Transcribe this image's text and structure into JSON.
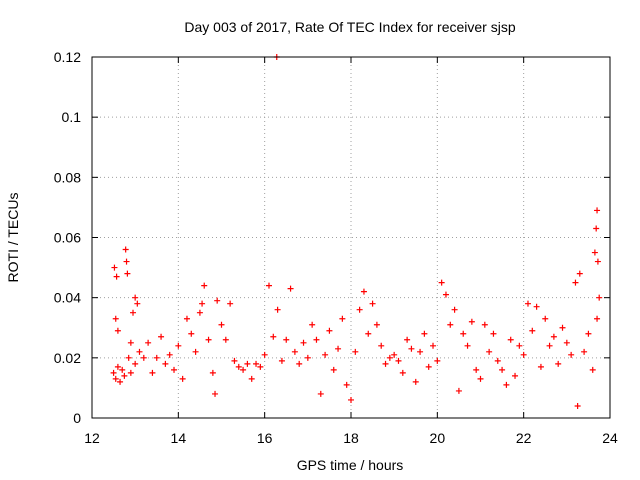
{
  "chart_data": {
    "type": "scatter",
    "title": "Day 003 of 2017, Rate Of TEC Index for receiver sjsp",
    "xlabel": "GPS time / hours",
    "ylabel": "ROTI / TECUs",
    "xlim": [
      12,
      24
    ],
    "ylim": [
      0,
      0.12
    ],
    "x_ticks": [
      12,
      14,
      16,
      18,
      20,
      22,
      24
    ],
    "y_ticks": [
      0,
      0.02,
      0.04,
      0.06,
      0.08,
      0.1,
      0.12
    ],
    "x_tick_labels": [
      "12",
      "14",
      "16",
      "18",
      "20",
      "22",
      "24"
    ],
    "y_tick_labels": [
      "0",
      "0.02",
      "0.04",
      "0.06",
      "0.08",
      "0.1",
      "0.12"
    ],
    "grid": true,
    "marker": "plus",
    "color": "#ff0000",
    "series": [
      {
        "points": [
          [
            12.5,
            0.015
          ],
          [
            12.55,
            0.013
          ],
          [
            12.6,
            0.017
          ],
          [
            12.65,
            0.012
          ],
          [
            12.7,
            0.016
          ],
          [
            12.75,
            0.014
          ],
          [
            12.55,
            0.033
          ],
          [
            12.6,
            0.029
          ],
          [
            12.52,
            0.05
          ],
          [
            12.57,
            0.047
          ],
          [
            12.78,
            0.056
          ],
          [
            12.8,
            0.052
          ],
          [
            12.82,
            0.048
          ],
          [
            12.85,
            0.02
          ],
          [
            12.9,
            0.025
          ],
          [
            12.95,
            0.035
          ],
          [
            13.0,
            0.04
          ],
          [
            13.05,
            0.038
          ],
          [
            12.9,
            0.015
          ],
          [
            13.0,
            0.018
          ],
          [
            13.1,
            0.022
          ],
          [
            13.2,
            0.02
          ],
          [
            13.3,
            0.025
          ],
          [
            13.4,
            0.015
          ],
          [
            13.5,
            0.02
          ],
          [
            13.6,
            0.027
          ],
          [
            13.7,
            0.018
          ],
          [
            13.8,
            0.021
          ],
          [
            13.9,
            0.016
          ],
          [
            14.0,
            0.024
          ],
          [
            14.1,
            0.013
          ],
          [
            14.2,
            0.033
          ],
          [
            14.3,
            0.028
          ],
          [
            14.4,
            0.022
          ],
          [
            14.5,
            0.035
          ],
          [
            14.6,
            0.044
          ],
          [
            14.55,
            0.038
          ],
          [
            14.7,
            0.026
          ],
          [
            14.8,
            0.015
          ],
          [
            14.85,
            0.008
          ],
          [
            14.9,
            0.039
          ],
          [
            15.0,
            0.031
          ],
          [
            15.1,
            0.026
          ],
          [
            15.2,
            0.038
          ],
          [
            15.3,
            0.019
          ],
          [
            15.4,
            0.017
          ],
          [
            15.5,
            0.016
          ],
          [
            15.6,
            0.018
          ],
          [
            15.7,
            0.013
          ],
          [
            15.8,
            0.018
          ],
          [
            15.9,
            0.017
          ],
          [
            16.0,
            0.021
          ],
          [
            16.1,
            0.044
          ],
          [
            16.2,
            0.027
          ],
          [
            16.3,
            0.036
          ],
          [
            16.28,
            0.12
          ],
          [
            16.4,
            0.019
          ],
          [
            16.5,
            0.026
          ],
          [
            16.6,
            0.043
          ],
          [
            16.7,
            0.022
          ],
          [
            16.8,
            0.018
          ],
          [
            16.9,
            0.025
          ],
          [
            17.0,
            0.02
          ],
          [
            17.1,
            0.031
          ],
          [
            17.2,
            0.026
          ],
          [
            17.3,
            0.008
          ],
          [
            17.4,
            0.021
          ],
          [
            17.5,
            0.029
          ],
          [
            17.6,
            0.016
          ],
          [
            17.7,
            0.023
          ],
          [
            17.8,
            0.033
          ],
          [
            17.9,
            0.011
          ],
          [
            18.0,
            0.006
          ],
          [
            18.1,
            0.022
          ],
          [
            18.2,
            0.036
          ],
          [
            18.3,
            0.042
          ],
          [
            18.4,
            0.028
          ],
          [
            18.5,
            0.038
          ],
          [
            18.6,
            0.031
          ],
          [
            18.7,
            0.024
          ],
          [
            18.8,
            0.018
          ],
          [
            18.9,
            0.02
          ],
          [
            19.0,
            0.021
          ],
          [
            19.1,
            0.019
          ],
          [
            19.2,
            0.015
          ],
          [
            19.3,
            0.026
          ],
          [
            19.4,
            0.023
          ],
          [
            19.5,
            0.012
          ],
          [
            19.6,
            0.022
          ],
          [
            19.7,
            0.028
          ],
          [
            19.8,
            0.017
          ],
          [
            19.9,
            0.024
          ],
          [
            20.0,
            0.019
          ],
          [
            20.1,
            0.045
          ],
          [
            20.2,
            0.041
          ],
          [
            20.3,
            0.031
          ],
          [
            20.4,
            0.036
          ],
          [
            20.5,
            0.009
          ],
          [
            20.6,
            0.028
          ],
          [
            20.7,
            0.024
          ],
          [
            20.8,
            0.032
          ],
          [
            20.9,
            0.016
          ],
          [
            21.0,
            0.013
          ],
          [
            21.1,
            0.031
          ],
          [
            21.2,
            0.022
          ],
          [
            21.3,
            0.028
          ],
          [
            21.4,
            0.019
          ],
          [
            21.5,
            0.016
          ],
          [
            21.6,
            0.011
          ],
          [
            21.7,
            0.026
          ],
          [
            21.8,
            0.014
          ],
          [
            21.9,
            0.024
          ],
          [
            22.0,
            0.021
          ],
          [
            22.1,
            0.038
          ],
          [
            22.2,
            0.029
          ],
          [
            22.3,
            0.037
          ],
          [
            22.4,
            0.017
          ],
          [
            22.5,
            0.033
          ],
          [
            22.6,
            0.024
          ],
          [
            22.7,
            0.027
          ],
          [
            22.8,
            0.018
          ],
          [
            22.9,
            0.03
          ],
          [
            23.0,
            0.025
          ],
          [
            23.1,
            0.021
          ],
          [
            23.2,
            0.045
          ],
          [
            23.25,
            0.004
          ],
          [
            23.3,
            0.048
          ],
          [
            23.4,
            0.022
          ],
          [
            23.5,
            0.028
          ],
          [
            23.6,
            0.016
          ],
          [
            23.65,
            0.055
          ],
          [
            23.7,
            0.069
          ],
          [
            23.68,
            0.063
          ],
          [
            23.72,
            0.052
          ],
          [
            23.75,
            0.04
          ],
          [
            23.7,
            0.033
          ]
        ]
      }
    ]
  }
}
